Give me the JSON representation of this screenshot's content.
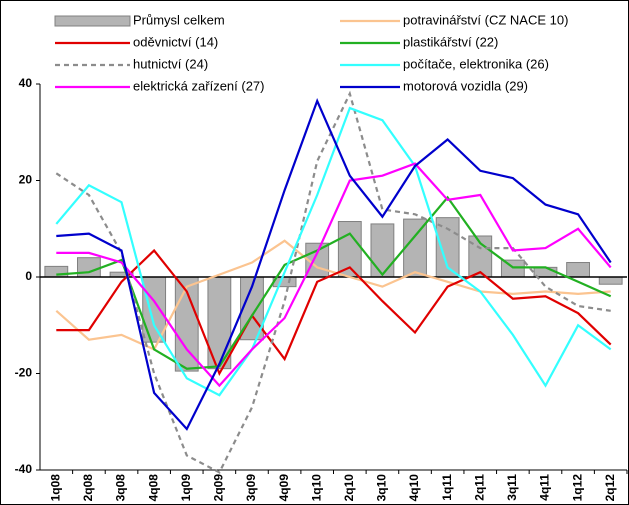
{
  "chart_data": {
    "type": "combo",
    "categories": [
      "1q08",
      "2q08",
      "3q08",
      "4q08",
      "1q09",
      "2q09",
      "3q09",
      "4q09",
      "1q10",
      "2q10",
      "3q10",
      "4q10",
      "1q11",
      "2q11",
      "3q11",
      "4q11",
      "1q12",
      "2q12"
    ],
    "ylim": [
      -40,
      40
    ],
    "yticks": [
      -40,
      -20,
      0,
      20,
      40
    ],
    "series": [
      {
        "name": "Průmysl celkem",
        "type": "bar",
        "color": "#b4b4b4",
        "values": [
          2.2,
          4,
          1,
          -13.5,
          -19.5,
          -19,
          -13,
          -2,
          7,
          11.5,
          11,
          12,
          12.3,
          8.5,
          3.5,
          2,
          3,
          -1.5
        ]
      },
      {
        "name": "potravinářství (CZ NACE 10)",
        "type": "line",
        "color": "#fbc490",
        "values": [
          -7,
          -13,
          -12,
          -15,
          -2,
          0.5,
          3,
          7.5,
          2,
          0,
          -2,
          1,
          -1,
          -3,
          -3.5,
          -3,
          -3.5,
          -3
        ]
      },
      {
        "name": "oděvnictví (14)",
        "type": "line",
        "color": "#e00000",
        "values": [
          -11,
          -11,
          -1,
          5.5,
          -3,
          -20,
          -8,
          -17,
          -1,
          2,
          -5,
          -11.5,
          -2,
          1,
          -4.5,
          -4,
          -7.5,
          -14
        ]
      },
      {
        "name": "plastikářství (22)",
        "type": "line",
        "color": "#22b022",
        "values": [
          0.5,
          1,
          3.5,
          -15,
          -19,
          -18.5,
          -8,
          2.5,
          5.5,
          9,
          0.5,
          8.5,
          16.5,
          7,
          2,
          2,
          -1,
          -4
        ]
      },
      {
        "name": "hutnictví (24)",
        "type": "line",
        "dash": true,
        "color": "#8c8c8c",
        "values": [
          21.5,
          17,
          5,
          -20,
          -37,
          -40.5,
          -27,
          -5,
          24,
          38,
          14,
          13,
          10,
          6,
          6,
          -2,
          -6,
          -7
        ]
      },
      {
        "name": "počítače, elektronika (26)",
        "type": "line",
        "color": "#33ffff",
        "values": [
          11,
          19,
          15.5,
          -10,
          -21,
          -24.5,
          -15,
          1,
          17,
          35,
          32.5,
          23,
          2,
          -3,
          -12,
          -22.5,
          -10,
          -15
        ]
      },
      {
        "name": "elektrická zařízení (27)",
        "type": "line",
        "color": "#ff00ff",
        "values": [
          5,
          5,
          3,
          -5,
          -15,
          -22.5,
          -15,
          -8.5,
          5,
          20,
          21,
          23.5,
          16,
          17,
          5.5,
          6,
          10,
          2
        ]
      },
      {
        "name": "motorová vozidla (29)",
        "type": "line",
        "color": "#0000cc",
        "values": [
          8.5,
          9,
          5.5,
          -24,
          -31.5,
          -18,
          -2,
          18,
          36.5,
          21,
          12.5,
          23,
          28.5,
          22,
          20.5,
          15,
          13,
          3
        ]
      }
    ]
  }
}
